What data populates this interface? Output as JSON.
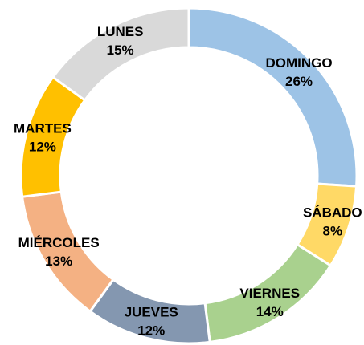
{
  "chart_data": {
    "type": "donut",
    "categories": [
      "DOMINGO",
      "SÁBADO",
      "VIERNES",
      "JUEVES",
      "MIÉRCOLES",
      "MARTES",
      "LUNES"
    ],
    "values": [
      26,
      8,
      14,
      12,
      13,
      12,
      15
    ],
    "value_labels": [
      "26%",
      "8%",
      "14%",
      "12%",
      "13%",
      "12%",
      "15%"
    ],
    "colors": [
      "#9dc3e6",
      "#ffd966",
      "#a9d18e",
      "#8497b0",
      "#f4b183",
      "#ffc000",
      "#d9d9d9"
    ]
  }
}
